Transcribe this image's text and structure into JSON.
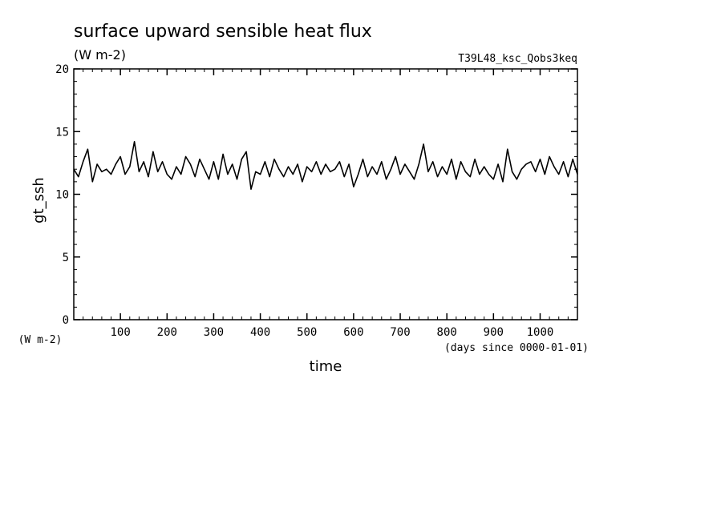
{
  "chart_data": {
    "type": "line",
    "title": "surface upward sensible heat flux",
    "units": "(W m-2)",
    "run_label": "T39L48_ksc_Qobs3keq",
    "ylabel": "gt_ssh",
    "y_units_label": "(W m-2)",
    "xlabel": "time",
    "x_units_label": "(days since 0000-01-01)",
    "xlim": [
      0,
      1080
    ],
    "ylim": [
      0,
      20
    ],
    "x_ticks": [
      100,
      200,
      300,
      400,
      500,
      600,
      700,
      800,
      900,
      1000
    ],
    "y_ticks": [
      0,
      5,
      10,
      15,
      20
    ],
    "grid": false,
    "series": [
      {
        "color": "#000000",
        "x": [
          0,
          10,
          20,
          30,
          40,
          50,
          60,
          70,
          80,
          90,
          100,
          110,
          120,
          130,
          140,
          150,
          160,
          170,
          180,
          190,
          200,
          210,
          220,
          230,
          240,
          250,
          260,
          270,
          280,
          290,
          300,
          310,
          320,
          330,
          340,
          350,
          360,
          370,
          380,
          390,
          400,
          410,
          420,
          430,
          440,
          450,
          460,
          470,
          480,
          490,
          500,
          510,
          520,
          530,
          540,
          550,
          560,
          570,
          580,
          590,
          600,
          610,
          620,
          630,
          640,
          650,
          660,
          670,
          680,
          690,
          700,
          710,
          720,
          730,
          740,
          750,
          760,
          770,
          780,
          790,
          800,
          810,
          820,
          830,
          840,
          850,
          860,
          870,
          880,
          890,
          900,
          910,
          920,
          930,
          940,
          950,
          960,
          970,
          980,
          990,
          1000,
          1010,
          1020,
          1030,
          1040,
          1050,
          1060,
          1070,
          1080
        ],
        "y": [
          12.0,
          11.4,
          12.6,
          13.6,
          11.0,
          12.4,
          11.8,
          12.0,
          11.6,
          12.4,
          13.0,
          11.6,
          12.2,
          14.2,
          11.8,
          12.6,
          11.4,
          13.4,
          11.8,
          12.6,
          11.6,
          11.2,
          12.2,
          11.6,
          13.0,
          12.4,
          11.4,
          12.8,
          12.0,
          11.2,
          12.6,
          11.2,
          13.2,
          11.6,
          12.4,
          11.2,
          12.8,
          13.4,
          10.4,
          11.8,
          11.6,
          12.6,
          11.4,
          12.8,
          12.0,
          11.4,
          12.2,
          11.6,
          12.4,
          11.0,
          12.2,
          11.8,
          12.6,
          11.6,
          12.4,
          11.8,
          12.0,
          12.6,
          11.4,
          12.4,
          10.6,
          11.6,
          12.8,
          11.4,
          12.2,
          11.6,
          12.6,
          11.2,
          12.0,
          13.0,
          11.6,
          12.4,
          11.8,
          11.2,
          12.4,
          14.0,
          11.8,
          12.6,
          11.4,
          12.2,
          11.6,
          12.8,
          11.2,
          12.6,
          11.8,
          11.4,
          12.8,
          11.6,
          12.2,
          11.6,
          11.2,
          12.4,
          11.0,
          13.6,
          11.8,
          11.2,
          12.0,
          12.4,
          12.6,
          11.8,
          12.8,
          11.6,
          13.0,
          12.2,
          11.6,
          12.6,
          11.4,
          12.8,
          11.6
        ]
      }
    ]
  }
}
